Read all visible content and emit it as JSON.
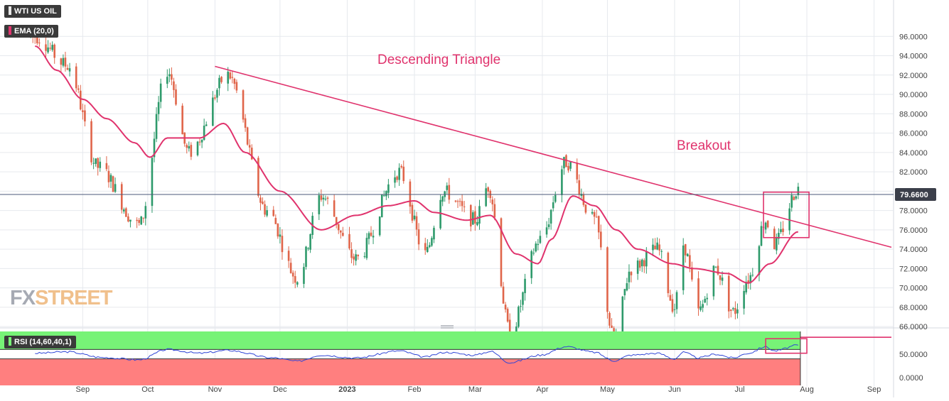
{
  "colors": {
    "up": "#2e9a6b",
    "down": "#e0654a",
    "ema": "#e0336d",
    "annotation": "#e0336d",
    "rsi_line": "#2f45d6",
    "rsi_upper_zone": "#77f377",
    "rsi_lower_zone": "#ff7f7f",
    "last_price_badge": "#3b3f4a",
    "grid": "#e6e9ee"
  },
  "legend": {
    "symbol": "WTI US OIL",
    "ema": "EMA (20,0)",
    "rsi": "RSI (14,60,40,1)"
  },
  "watermark": {
    "part1": "FX",
    "part2": "STREET"
  },
  "annotations": {
    "pattern": "Descending Triangle",
    "breakout": "Breakout"
  },
  "last_price_label": "79.6600",
  "chart_data": [
    {
      "type": "candlestick",
      "ylim": [
        64.0,
        97.0
      ],
      "grid": true,
      "y_ticks": [
        "96.0000",
        "94.0000",
        "92.0000",
        "90.0000",
        "88.0000",
        "86.0000",
        "84.0000",
        "82.0000",
        "80.0000",
        "78.0000",
        "76.0000",
        "74.0000",
        "72.0000",
        "70.0000",
        "68.0000",
        "66.0000"
      ],
      "x_ticks": [
        "Sep",
        "Oct",
        "Nov",
        "Dec",
        "2023",
        "Feb",
        "Mar",
        "Apr",
        "May",
        "Jun",
        "Jul",
        "Aug",
        "Sep"
      ],
      "series": [
        {
          "name": "EMA (20,0)",
          "anchors": [
            [
              "2022-08-10",
              95.0
            ],
            [
              "2022-08-20",
              92.5
            ],
            [
              "2022-09-01",
              89.5
            ],
            [
              "2022-09-12",
              87.5
            ],
            [
              "2022-09-25",
              85.0
            ],
            [
              "2022-10-02",
              83.5
            ],
            [
              "2022-10-10",
              85.5
            ],
            [
              "2022-10-25",
              85.5
            ],
            [
              "2022-11-05",
              87.0
            ],
            [
              "2022-11-15",
              84.0
            ],
            [
              "2022-12-01",
              80.0
            ],
            [
              "2022-12-20",
              76.0
            ],
            [
              "2023-01-05",
              77.5
            ],
            [
              "2023-01-20",
              78.5
            ],
            [
              "2023-02-01",
              79.0
            ],
            [
              "2023-02-10",
              77.8
            ],
            [
              "2023-02-25",
              77.0
            ],
            [
              "2023-03-08",
              77.5
            ],
            [
              "2023-03-20",
              73.5
            ],
            [
              "2023-03-30",
              72.5
            ],
            [
              "2023-04-05",
              75.0
            ],
            [
              "2023-04-15",
              79.5
            ],
            [
              "2023-04-25",
              78.5
            ],
            [
              "2023-05-05",
              76.0
            ],
            [
              "2023-05-15",
              74.0
            ],
            [
              "2023-05-31",
              72.5
            ],
            [
              "2023-06-10",
              72.0
            ],
            [
              "2023-06-25",
              71.5
            ],
            [
              "2023-07-05",
              70.5
            ],
            [
              "2023-07-15",
              72.5
            ],
            [
              "2023-07-28",
              75.8
            ]
          ]
        }
      ],
      "candles_note": "daily WTI candles; rendered from a seeded path approximating the visible swings (Aug 2022 - Jul 28 2023)",
      "swing_points": [
        [
          "2022-08-10",
          96.0
        ],
        [
          "2022-08-25",
          93.0
        ],
        [
          "2022-09-08",
          82.5
        ],
        [
          "2022-09-27",
          76.5
        ],
        [
          "2022-10-10",
          92.5
        ],
        [
          "2022-10-20",
          84.0
        ],
        [
          "2022-11-07",
          92.0
        ],
        [
          "2022-11-25",
          78.0
        ],
        [
          "2022-12-09",
          71.0
        ],
        [
          "2022-12-20",
          79.5
        ],
        [
          "2023-01-05",
          73.0
        ],
        [
          "2023-01-25",
          82.0
        ],
        [
          "2023-02-06",
          73.5
        ],
        [
          "2023-02-14",
          80.0
        ],
        [
          "2023-03-01",
          77.0
        ],
        [
          "2023-03-07",
          80.5
        ],
        [
          "2023-03-17",
          65.5
        ],
        [
          "2023-03-31",
          75.0
        ],
        [
          "2023-04-12",
          83.0
        ],
        [
          "2023-04-25",
          77.0
        ],
        [
          "2023-05-04",
          64.8
        ],
        [
          "2023-05-12",
          72.0
        ],
        [
          "2023-05-24",
          74.0
        ],
        [
          "2023-06-01",
          68.0
        ],
        [
          "2023-06-05",
          74.5
        ],
        [
          "2023-06-12",
          67.5
        ],
        [
          "2023-06-20",
          72.0
        ],
        [
          "2023-06-28",
          67.5
        ],
        [
          "2023-07-05",
          71.0
        ],
        [
          "2023-07-13",
          77.0
        ],
        [
          "2023-07-17",
          74.5
        ],
        [
          "2023-07-28",
          80.2
        ]
      ],
      "trendlines": [
        {
          "from": [
            "2022-11-01",
            92.9
          ],
          "to": [
            "2023-09-09",
            74.2
          ]
        },
        {
          "from": [
            "2023-02-25",
            64.9
          ],
          "to": [
            "2023-09-09",
            64.9
          ]
        }
      ],
      "boxes": [
        {
          "from": [
            "2023-07-12",
            75.2
          ],
          "to": [
            "2023-08-02",
            79.9
          ]
        }
      ],
      "last_price": 79.66
    },
    {
      "type": "line",
      "title": "RSI (14,60,40,1)",
      "ylim": [
        0,
        100
      ],
      "y_ticks": [
        "50.0000",
        "0.0000"
      ],
      "upper_band": 60,
      "lower_band": 40,
      "series": [
        {
          "name": "RSI",
          "anchors": [
            [
              "2022-08-10",
              52
            ],
            [
              "2022-08-25",
              55
            ],
            [
              "2022-09-10",
              43
            ],
            [
              "2022-09-27",
              38
            ],
            [
              "2022-10-10",
              60
            ],
            [
              "2022-10-25",
              52
            ],
            [
              "2022-11-07",
              58
            ],
            [
              "2022-11-28",
              42
            ],
            [
              "2022-12-09",
              35
            ],
            [
              "2022-12-20",
              48
            ],
            [
              "2023-01-05",
              42
            ],
            [
              "2023-01-25",
              57
            ],
            [
              "2023-02-06",
              44
            ],
            [
              "2023-02-15",
              54
            ],
            [
              "2023-03-01",
              48
            ],
            [
              "2023-03-08",
              56
            ],
            [
              "2023-03-17",
              32
            ],
            [
              "2023-03-31",
              48
            ],
            [
              "2023-04-12",
              66
            ],
            [
              "2023-04-25",
              54
            ],
            [
              "2023-05-04",
              36
            ],
            [
              "2023-05-12",
              48
            ],
            [
              "2023-05-24",
              52
            ],
            [
              "2023-06-01",
              40
            ],
            [
              "2023-06-05",
              54
            ],
            [
              "2023-06-12",
              42
            ],
            [
              "2023-06-20",
              50
            ],
            [
              "2023-06-28",
              42
            ],
            [
              "2023-07-05",
              52
            ],
            [
              "2023-07-13",
              66
            ],
            [
              "2023-07-17",
              57
            ],
            [
              "2023-07-28",
              69
            ]
          ]
        }
      ],
      "boxes": [
        {
          "from": [
            "2023-07-13",
            52
          ],
          "to": [
            "2023-08-01",
            83
          ]
        }
      ]
    }
  ]
}
